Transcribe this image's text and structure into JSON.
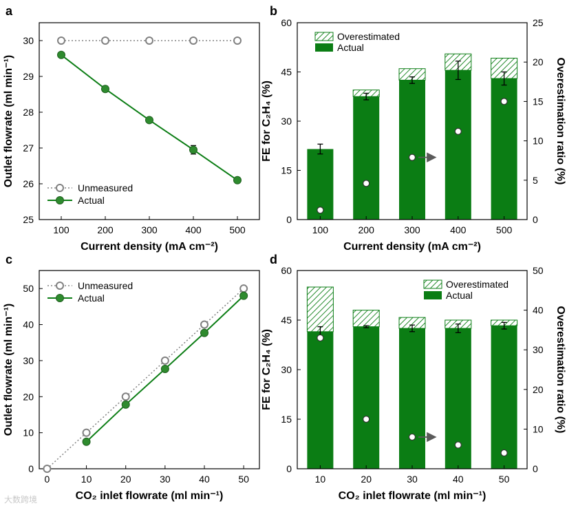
{
  "colors": {
    "green": "#0b7d14",
    "marker_green": "#2e8b2e",
    "gray": "#808080",
    "black": "#000000",
    "arrow": "#5a5a5a"
  },
  "watermark": "大数跨境",
  "chart_data": [
    {
      "panel": "a",
      "type": "line",
      "xlabel": "Current density (mA cm⁻²)",
      "ylabel": "Outlet flowrate (ml min⁻¹)",
      "x": [
        100,
        200,
        300,
        400,
        500
      ],
      "xticks": [
        "100",
        "200",
        "300",
        "400",
        "500"
      ],
      "xlim": [
        50,
        550
      ],
      "ylim": [
        25,
        30.5
      ],
      "yticks": [
        "25",
        "26",
        "27",
        "28",
        "29",
        "30"
      ],
      "legend_position": "bottom-left",
      "series": [
        {
          "name": "Unmeasured",
          "values": [
            30,
            30,
            30,
            30,
            30
          ],
          "style": "dotted-open"
        },
        {
          "name": "Actual",
          "values": [
            29.6,
            28.65,
            27.78,
            26.95,
            26.1
          ],
          "errors": [
            0,
            0.08,
            0,
            0.12,
            0
          ],
          "style": "solid-filled"
        }
      ]
    },
    {
      "panel": "b",
      "type": "bar",
      "xlabel": "Current density (mA cm⁻²)",
      "ylabel_left": "FE for C₂H₄ (%)",
      "ylabel_right": "Overestimation ratio (%)",
      "categories": [
        "100",
        "200",
        "300",
        "400",
        "500"
      ],
      "ylim": [
        0,
        60
      ],
      "yticks": [
        "0",
        "15",
        "30",
        "45",
        "60"
      ],
      "ylim_right": [
        0,
        25
      ],
      "yticks_right": [
        "0",
        "5",
        "10",
        "15",
        "20",
        "25"
      ],
      "legend_position": "top-left",
      "series": [
        {
          "name": "Actual",
          "values": [
            21.5,
            37.5,
            42.5,
            45.5,
            43
          ],
          "errors": [
            1.5,
            1,
            1,
            2.8,
            2
          ],
          "style": "solid"
        },
        {
          "name": "Overestimated",
          "values": [
            0,
            2,
            3.5,
            5,
            6.2
          ],
          "style": "hatched"
        }
      ],
      "ratio_points": [
        1.2,
        4.6,
        7.9,
        11.2,
        15
      ],
      "arrow_point_index": 2
    },
    {
      "panel": "c",
      "type": "line",
      "xlabel": "CO₂ inlet flowrate (ml min⁻¹)",
      "ylabel": "Outlet flowrate (ml min⁻¹)",
      "x": [
        0,
        10,
        20,
        30,
        40,
        50
      ],
      "xticks": [
        "0",
        "10",
        "20",
        "30",
        "40",
        "50"
      ],
      "xlim": [
        -2,
        54
      ],
      "ylim": [
        0,
        55
      ],
      "yticks": [
        "0",
        "10",
        "20",
        "30",
        "40",
        "50"
      ],
      "legend_position": "top-left",
      "series": [
        {
          "name": "Unmeasured",
          "values": [
            0,
            10,
            20,
            30,
            40,
            50
          ],
          "style": "dotted-open"
        },
        {
          "name": "Actual",
          "values": [
            null,
            7.5,
            17.8,
            27.7,
            37.7,
            48
          ],
          "style": "solid-filled"
        }
      ]
    },
    {
      "panel": "d",
      "type": "bar",
      "xlabel": "CO₂ inlet flowrate (ml min⁻¹)",
      "ylabel_left": "FE for C₂H₄ (%)",
      "ylabel_right": "Overestimation ratio (%)",
      "categories": [
        "10",
        "20",
        "30",
        "40",
        "50"
      ],
      "ylim": [
        0,
        60
      ],
      "yticks": [
        "0",
        "15",
        "30",
        "45",
        "60"
      ],
      "ylim_right": [
        0,
        50
      ],
      "yticks_right": [
        "0",
        "10",
        "20",
        "30",
        "40",
        "50"
      ],
      "legend_position": "top-right",
      "series": [
        {
          "name": "Actual",
          "values": [
            41.5,
            43,
            42.5,
            42.5,
            43.3
          ],
          "errors": [
            1.5,
            0.3,
            1,
            1.3,
            1
          ],
          "style": "solid"
        },
        {
          "name": "Overestimated",
          "values": [
            13.5,
            5,
            3.3,
            2.5,
            1.7
          ],
          "style": "hatched"
        }
      ],
      "ratio_points": [
        33,
        12.5,
        8,
        6,
        4
      ],
      "arrow_point_index": 2
    }
  ]
}
